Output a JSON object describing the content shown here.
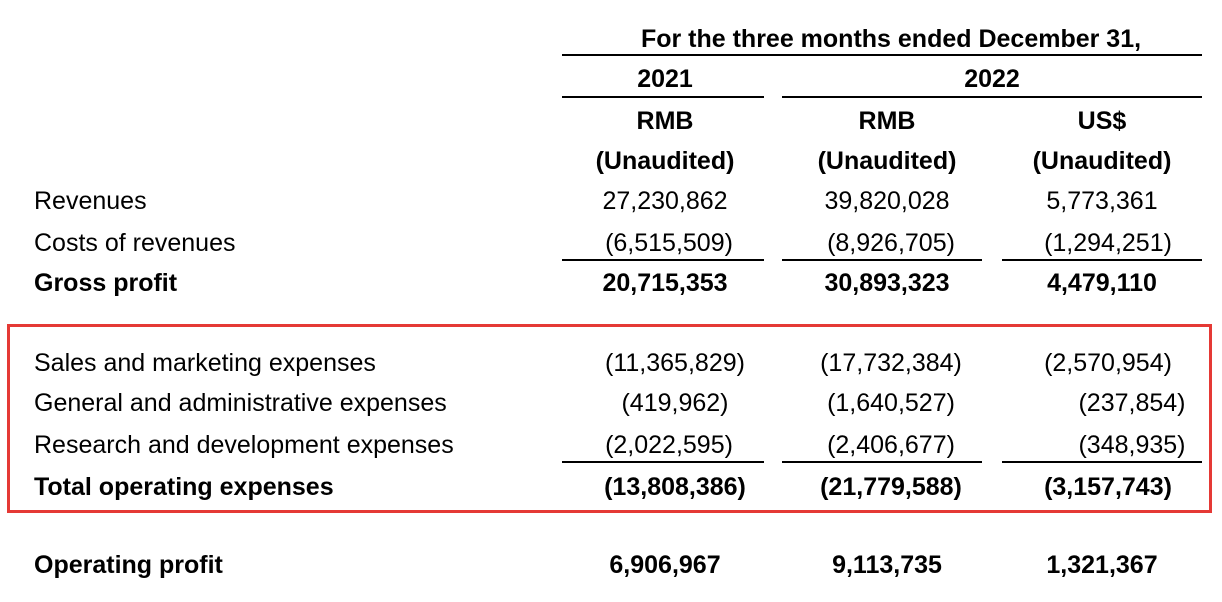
{
  "header": {
    "period_title": "For the three months ended December 31,",
    "year_2021": "2021",
    "year_2022": "2022",
    "currency": [
      "RMB",
      "RMB",
      "US$"
    ],
    "audit_status": [
      "(Unaudited)",
      "(Unaudited)",
      "(Unaudited)"
    ]
  },
  "rows": [
    {
      "label": "Revenues",
      "values": [
        "27,230,862",
        "39,820,028",
        "5,773,361"
      ],
      "bold": false
    },
    {
      "label": "Costs of revenues",
      "values": [
        "(6,515,509)",
        "(8,926,705)",
        "(1,294,251)"
      ],
      "bold": false
    },
    {
      "label": "Gross profit",
      "values": [
        "20,715,353",
        "30,893,323",
        "4,479,110"
      ],
      "bold": true
    },
    {
      "label": "Sales and marketing expenses",
      "values": [
        "(11,365,829)",
        "(17,732,384)",
        "(2,570,954)"
      ],
      "bold": false
    },
    {
      "label": "General and administrative expenses",
      "values": [
        "(419,962)",
        "(1,640,527)",
        "(237,854)"
      ],
      "bold": false
    },
    {
      "label": "Research and development expenses",
      "values": [
        "(2,022,595)",
        "(2,406,677)",
        "(348,935)"
      ],
      "bold": false
    },
    {
      "label": "Total operating expenses",
      "values": [
        "(13,808,386)",
        "(21,779,588)",
        "(3,157,743)"
      ],
      "bold": true
    },
    {
      "label": "Operating profit",
      "values": [
        "6,906,967",
        "9,113,735",
        "1,321,367"
      ],
      "bold": true
    }
  ],
  "highlight_color": "#e53935"
}
